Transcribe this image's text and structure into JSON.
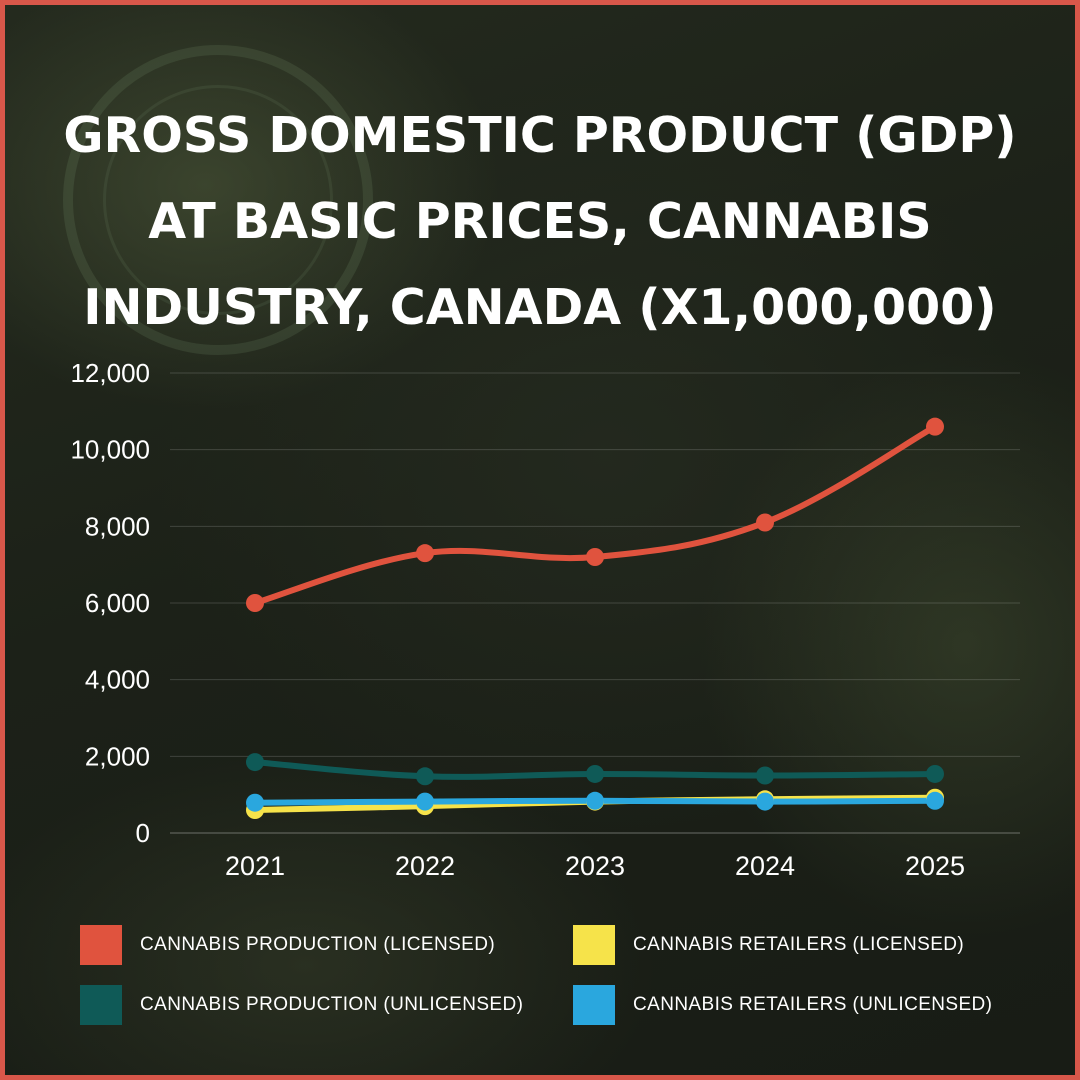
{
  "header": {
    "title_lines": [
      "GROSS DOMESTIC PRODUCT (GDP)",
      "AT BASIC PRICES, CANNABIS",
      "INDUSTRY, CANADA (X1,000,000)"
    ]
  },
  "chart_data": {
    "type": "line",
    "title": "GROSS DOMESTIC PRODUCT (GDP) AT BASIC PRICES, CANNABIS INDUSTRY, CANADA (X1,000,000)",
    "xlabel": "",
    "ylabel": "",
    "categories": [
      "2021",
      "2022",
      "2023",
      "2024",
      "2025"
    ],
    "y_ticks": [
      "0",
      "2,000",
      "4,000",
      "6,000",
      "8,000",
      "10,000",
      "12,000"
    ],
    "ylim": [
      0,
      12000
    ],
    "grid": true,
    "legend_position": "bottom",
    "series": [
      {
        "name": "CANNABIS PRODUCTION (LICENSED)",
        "color": "#e0533e",
        "values": [
          6000,
          7300,
          7200,
          8100,
          10600
        ]
      },
      {
        "name": "CANNABIS PRODUCTION (UNLICENSED)",
        "color": "#0f5a57",
        "values": [
          1850,
          1480,
          1540,
          1500,
          1540
        ]
      },
      {
        "name": "CANNABIS RETAILERS (LICENSED)",
        "color": "#f6e34a",
        "values": [
          600,
          700,
          820,
          880,
          920
        ]
      },
      {
        "name": "CANNABIS RETAILERS (UNLICENSED)",
        "color": "#2aa7de",
        "values": [
          790,
          820,
          840,
          820,
          840
        ]
      }
    ]
  }
}
